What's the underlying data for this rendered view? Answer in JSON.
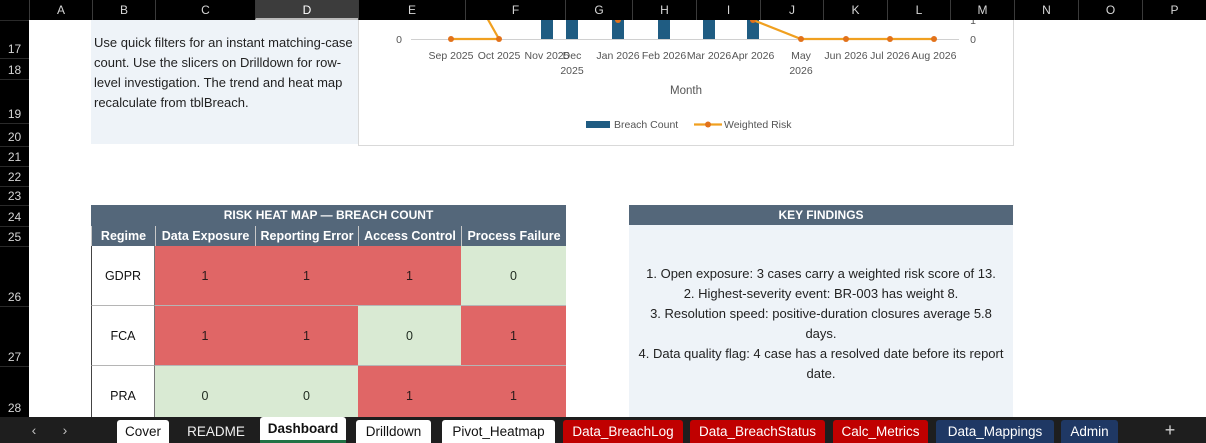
{
  "columns": [
    "A",
    "B",
    "C",
    "D",
    "E",
    "F",
    "G",
    "H",
    "I",
    "J",
    "K",
    "L",
    "M",
    "N",
    "O",
    "P"
  ],
  "selected_column": "D",
  "rows": [
    "17",
    "18",
    "19",
    "20",
    "21",
    "22",
    "23",
    "24",
    "25",
    "26",
    "27",
    "28"
  ],
  "note": {
    "text": "Use quick filters for an instant matching-case count. Use the slicers on Drilldown for row-level investigation. The trend and heat map recalculate from tblBreach."
  },
  "chart_data": {
    "type": "bar",
    "categories": [
      "Sep 2025",
      "Oct 2025",
      "Nov 2025",
      "Dec 2025",
      "Jan 2026",
      "Feb 2026",
      "Mar 2026",
      "Apr 2026",
      "May 2026",
      "Jun 2026",
      "Jul 2026",
      "Aug 2026"
    ],
    "series": [
      {
        "name": "Breach Count",
        "type": "bar",
        "color": "#1f5c82",
        "values": [
          0,
          0,
          1,
          1,
          1,
          1,
          1,
          1,
          0,
          0,
          0,
          0
        ]
      },
      {
        "name": "Weighted Risk",
        "type": "line",
        "color": "#f0a020",
        "values": [
          0,
          0,
          null,
          null,
          null,
          null,
          null,
          null,
          0,
          0,
          0,
          0
        ]
      }
    ],
    "xlabel": "Month",
    "left_axis_visible_ticks": [
      "0"
    ],
    "right_axis_visible_ticks": [
      "1",
      "0"
    ],
    "legend_position": "bottom"
  },
  "heatmap": {
    "title": "RISK HEAT MAP — BREACH COUNT",
    "headers": [
      "Regime",
      "Data Exposure",
      "Reporting Error",
      "Access Control",
      "Process Failure"
    ],
    "rows": [
      {
        "regime": "GDPR",
        "values": [
          "1",
          "1",
          "1",
          "0"
        ]
      },
      {
        "regime": "FCA",
        "values": [
          "1",
          "1",
          "0",
          "1"
        ]
      },
      {
        "regime": "PRA",
        "values": [
          "0",
          "0",
          "1",
          "1"
        ]
      }
    ],
    "hot_color": "#e06666",
    "cool_color": "#d9ead3"
  },
  "findings": {
    "title": "KEY FINDINGS",
    "items": [
      "1. Open exposure: 3 cases carry a weighted risk score of 13.",
      "2. Highest-severity event: BR-003 has weight 8.",
      "3. Resolution speed: positive-duration closures average 5.8 days.",
      "4. Data quality flag: 4 case has a resolved date before its report date."
    ]
  },
  "tabs": [
    {
      "label": "Cover",
      "style": "white"
    },
    {
      "label": "README",
      "style": "plain"
    },
    {
      "label": "Dashboard",
      "style": "active"
    },
    {
      "label": "Drilldown",
      "style": "white"
    },
    {
      "label": "Pivot_Heatmap",
      "style": "white"
    },
    {
      "label": "Data_BreachLog",
      "style": "red"
    },
    {
      "label": "Data_BreachStatus",
      "style": "red"
    },
    {
      "label": "Calc_Metrics",
      "style": "red"
    },
    {
      "label": "Data_Mappings",
      "style": "navy"
    },
    {
      "label": "Admin",
      "style": "navy"
    }
  ],
  "nav": {
    "prev": "‹",
    "next": "›",
    "add": "+"
  }
}
